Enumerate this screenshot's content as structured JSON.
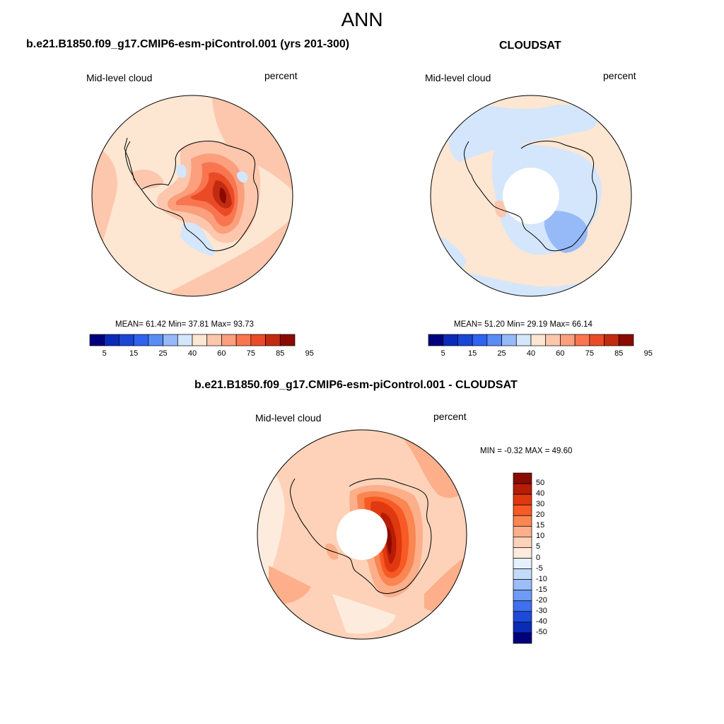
{
  "figure": {
    "season": "ANN"
  },
  "panels": [
    {
      "title": "b.e21.B1850.f09_g17.CMIP6-esm-piControl.001 (yrs 201-300)",
      "left_label": "Mid-level cloud",
      "right_label": "percent",
      "stats": "MEAN=  61.42  Min=  37.81  Max=  93.73",
      "mean": 61.42,
      "min": 37.81,
      "max": 93.73,
      "colorbar_labels": [
        "5",
        "15",
        "25",
        "40",
        "60",
        "75",
        "85",
        "95"
      ]
    },
    {
      "title": "CLOUDSAT",
      "left_label": "Mid-level cloud",
      "right_label": "percent",
      "stats": "MEAN=  51.20  Min=  29.19  Max=  66.14",
      "mean": 51.2,
      "min": 29.19,
      "max": 66.14,
      "colorbar_labels": [
        "5",
        "15",
        "25",
        "40",
        "60",
        "75",
        "85",
        "95"
      ]
    },
    {
      "title": "b.e21.B1850.f09_g17.CMIP6-esm-piControl.001 - CLOUDSAT",
      "left_label": "Mid-level cloud",
      "right_label": "percent",
      "stats": "MIN =  -0.32 MAX =  49.60",
      "min": -0.32,
      "max": 49.6,
      "colorbar_labels": [
        "50",
        "40",
        "30",
        "20",
        "15",
        "10",
        "5",
        "0",
        "-5",
        "-10",
        "-15",
        "-20",
        "-30",
        "-40",
        "-50"
      ]
    }
  ],
  "colors": {
    "abs_scale": [
      "#00007f",
      "#0a2ab8",
      "#1a46d6",
      "#2f62ee",
      "#5a8cf5",
      "#96b9f8",
      "#d4e6fb",
      "#fde6d2",
      "#fcc7ad",
      "#fb9f7c",
      "#f97550",
      "#ea4b26",
      "#c32b10",
      "#8b0a00"
    ],
    "diff_scale": [
      "#8b0a00",
      "#b71c06",
      "#e0380f",
      "#f75a25",
      "#fa8652",
      "#fcaf8a",
      "#fdd2b8",
      "#fdecde",
      "#e4f0fd",
      "#c4dafb",
      "#9bbdf8",
      "#6e9bf4",
      "#3e70ef",
      "#1e4ad8",
      "#0a2bb5",
      "#00007f"
    ]
  }
}
